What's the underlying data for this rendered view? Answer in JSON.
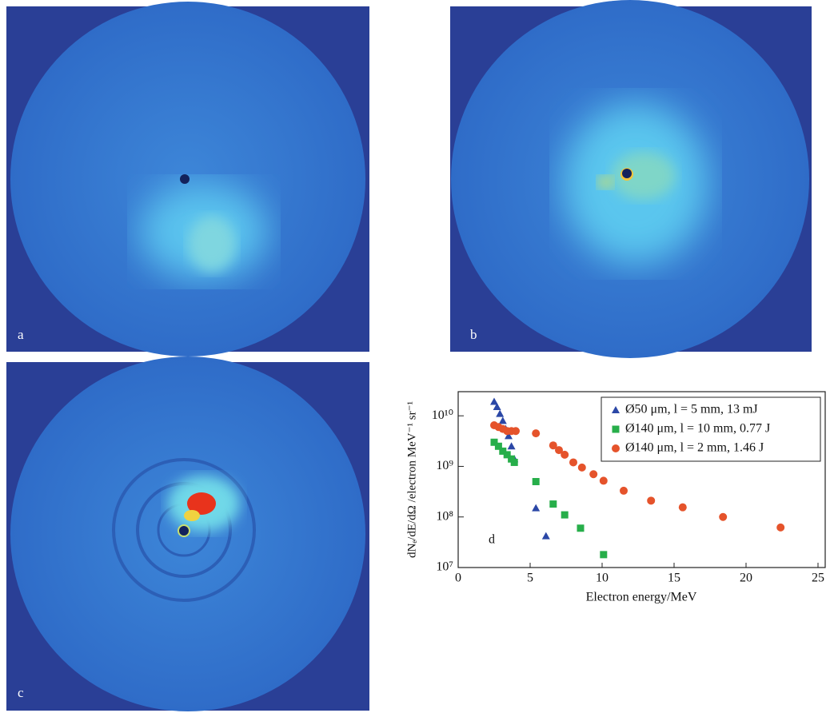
{
  "panels": [
    "a",
    "b",
    "c"
  ],
  "chart_data": {
    "type": "scatter",
    "panel_label": "d",
    "x_label": "Electron energy/MeV",
    "y_label": "dNₑ/dE/dΩ /electron MeV⁻¹ sr⁻¹",
    "xlim": [
      0,
      25.5
    ],
    "xticks": [
      0,
      5,
      10,
      15,
      20,
      25
    ],
    "ylim": [
      10000000,
      30000000000
    ],
    "log_y": true,
    "yticks": [
      {
        "value": 10000000,
        "label": "10⁷"
      },
      {
        "value": 100000000,
        "label": "10⁸"
      },
      {
        "value": 1000000000,
        "label": "10⁹"
      },
      {
        "value": 10000000000,
        "label": "10¹⁰"
      }
    ],
    "legend": "upper right",
    "series": [
      {
        "name": "Ø50 μm, l = 5 mm, 13 mJ",
        "color": "#2b47a6",
        "marker": "triangle",
        "x": [
          2.5,
          2.7,
          2.9,
          3.1,
          3.3,
          3.5,
          3.7,
          3.9,
          5.4,
          6.1
        ],
        "values": [
          19000000000,
          15000000000,
          11000000000,
          8000000000,
          5500000000,
          4000000000,
          2500000000,
          1400000000,
          150000000,
          42000000
        ]
      },
      {
        "name": "Ø140 μm, l = 10 mm, 0.77 J",
        "color": "#27ae4a",
        "marker": "square",
        "x": [
          2.5,
          2.8,
          3.1,
          3.4,
          3.7,
          3.9,
          5.4,
          6.6,
          7.4,
          8.5,
          10.1
        ],
        "values": [
          3000000000,
          2500000000,
          2000000000,
          1700000000,
          1400000000,
          1200000000,
          500000000,
          180000000,
          110000000,
          60000000,
          18000000
        ]
      },
      {
        "name": "Ø140 μm, l = 2 mm, 1.46 J",
        "color": "#e5532b",
        "marker": "circle",
        "x": [
          2.5,
          2.8,
          3.1,
          3.4,
          3.7,
          4.0,
          5.4,
          6.6,
          7.0,
          7.4,
          8.0,
          8.6,
          9.4,
          10.1,
          11.5,
          13.4,
          15.6,
          18.4,
          22.4
        ],
        "values": [
          6500000000,
          6000000000,
          5500000000,
          5000000000,
          5000000000,
          5000000000,
          4500000000,
          2600000000,
          2100000000,
          1700000000,
          1200000000,
          950000000,
          700000000,
          520000000,
          330000000,
          210000000,
          155000000,
          100000000,
          62000000
        ]
      }
    ]
  }
}
